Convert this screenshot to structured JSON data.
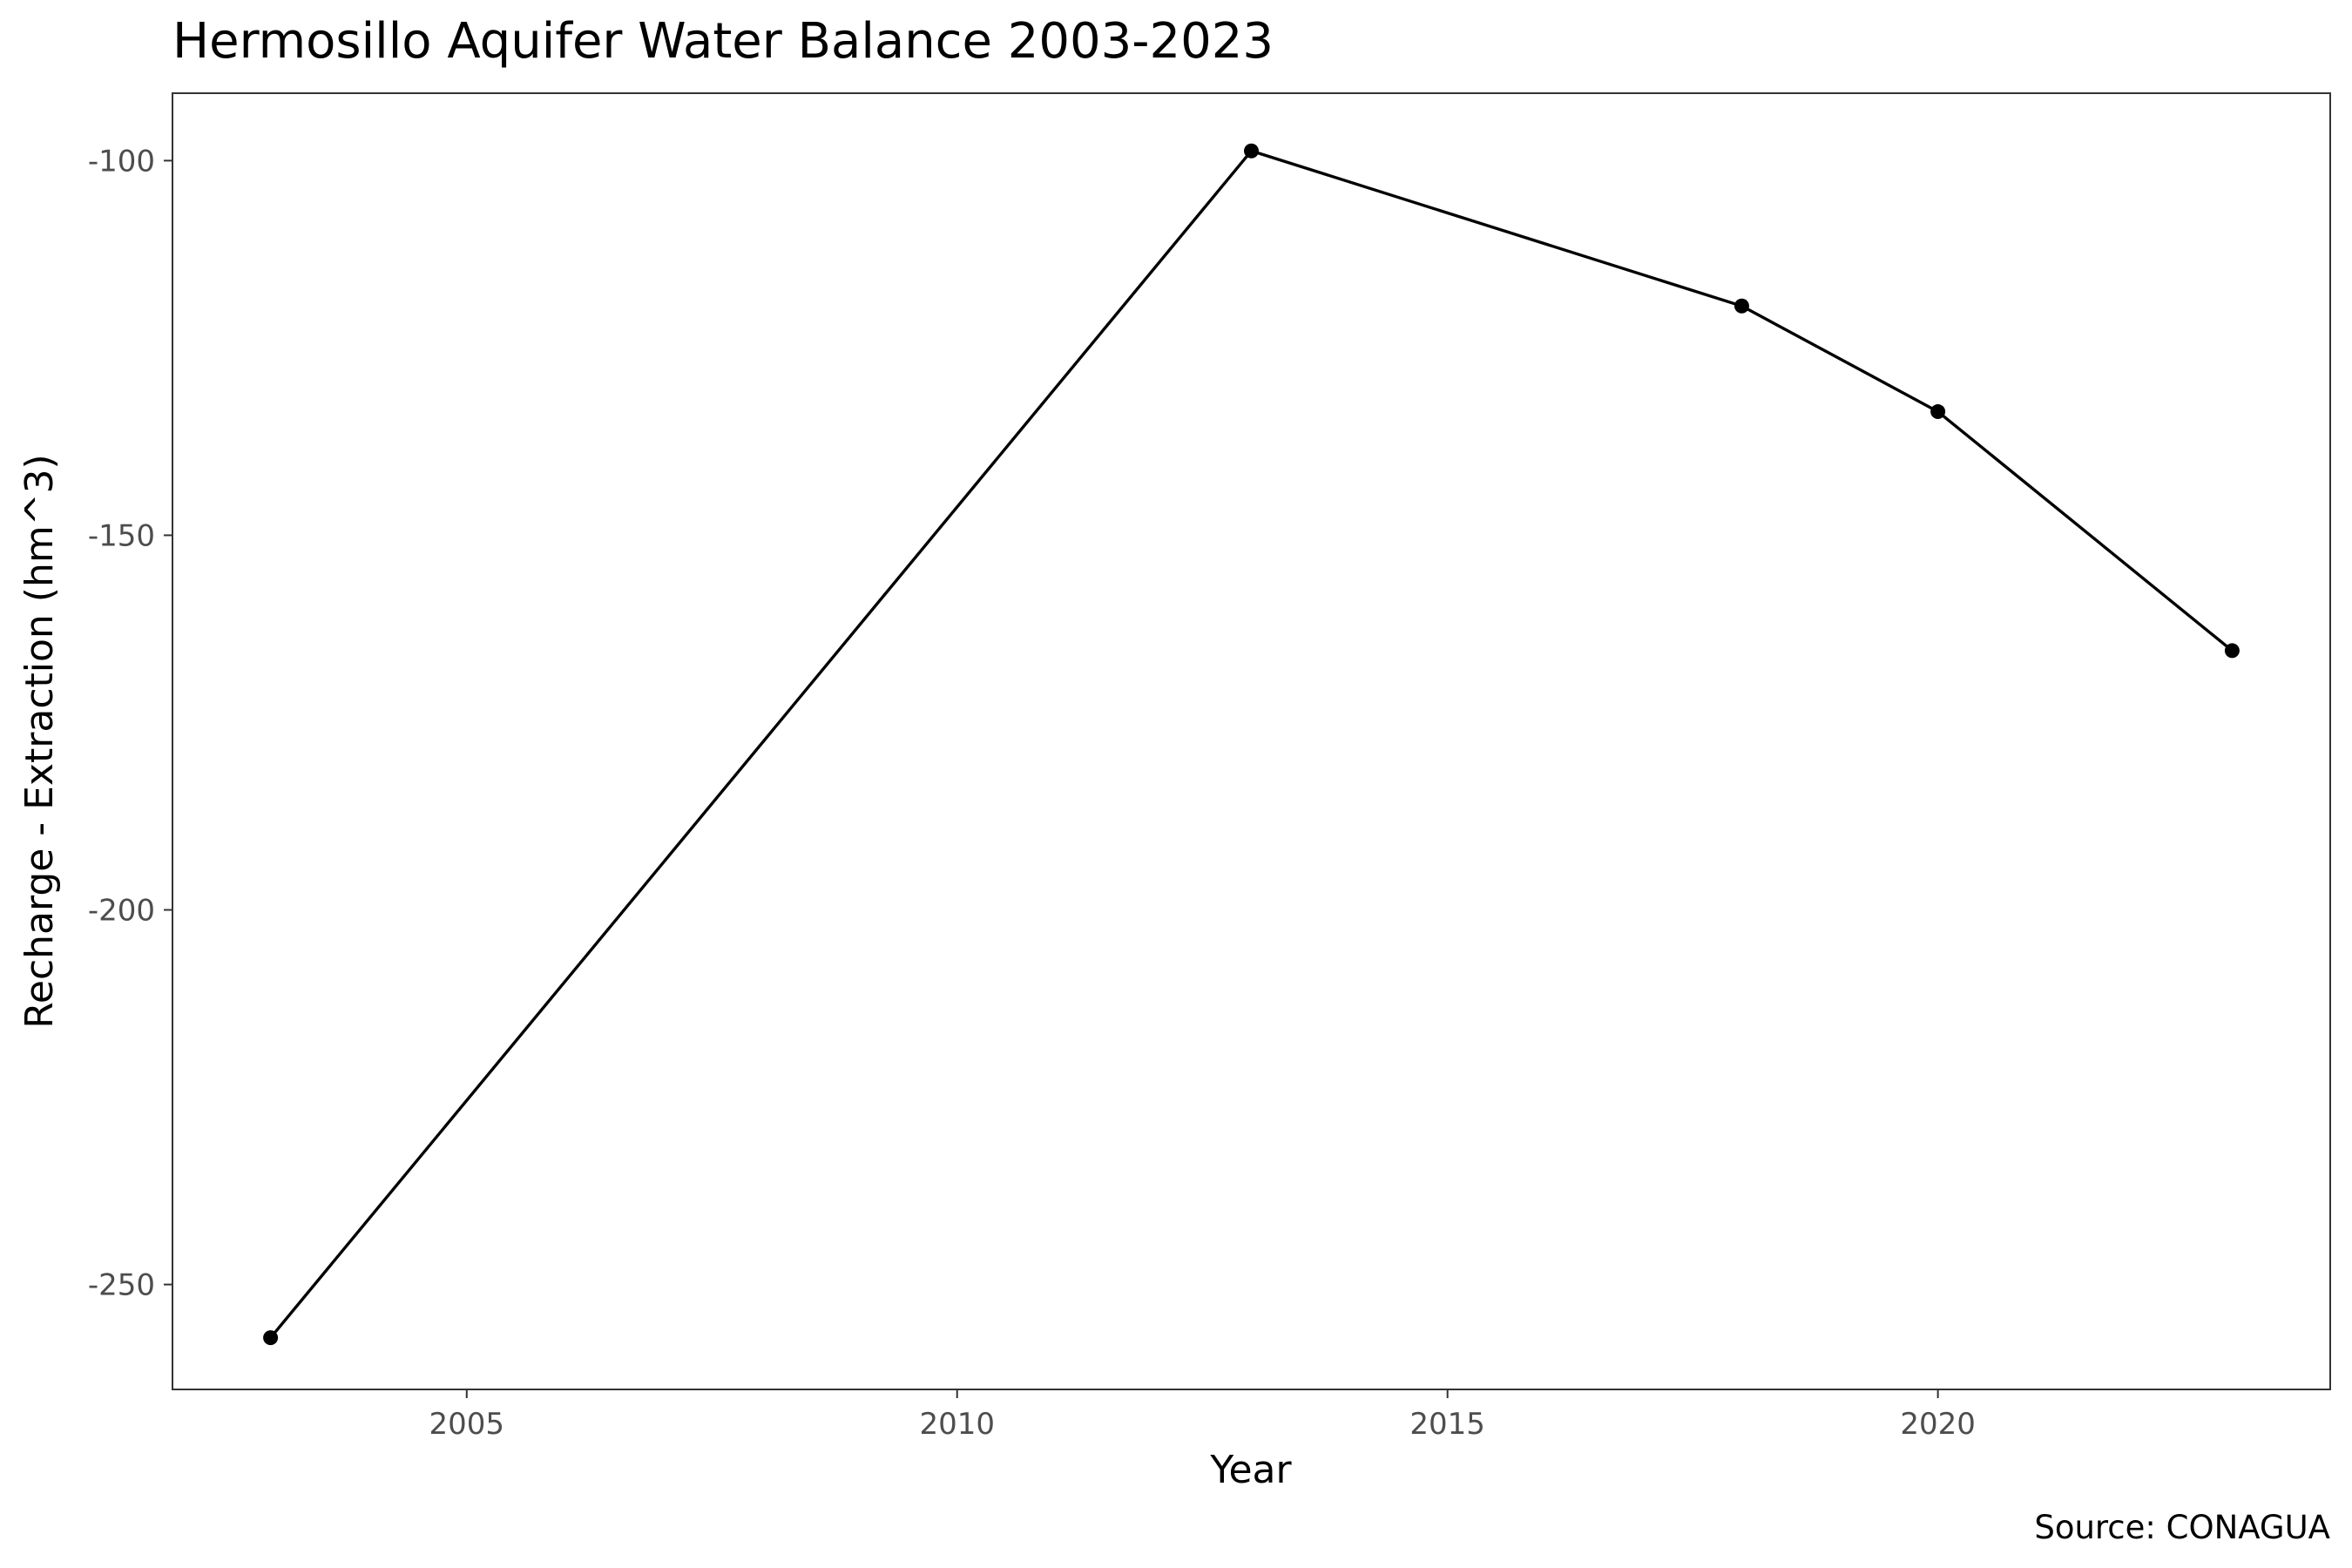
{
  "chart_data": {
    "type": "line",
    "title": "Hermosillo Aquifer Water Balance 2003-2023",
    "xlabel": "Year",
    "ylabel": "Recharge - Extraction (hm^3)",
    "caption": "Source: CONAGUA",
    "x": [
      2003,
      2013,
      2018,
      2020,
      2023
    ],
    "series": [
      {
        "values": [
          -257.1,
          -98.7,
          -119.4,
          -133.5,
          -165.4
        ]
      }
    ],
    "xlim": [
      2002,
      2024
    ],
    "ylim": [
      -264,
      -91
    ],
    "xticks": [
      2005,
      2010,
      2015,
      2020
    ],
    "yticks": [
      -100,
      -150,
      -200,
      -250
    ],
    "grid": false,
    "legend": "none",
    "colors": {
      "line": "#000000",
      "panel_border": "#333333",
      "tick_text": "#4d4d4d"
    }
  }
}
